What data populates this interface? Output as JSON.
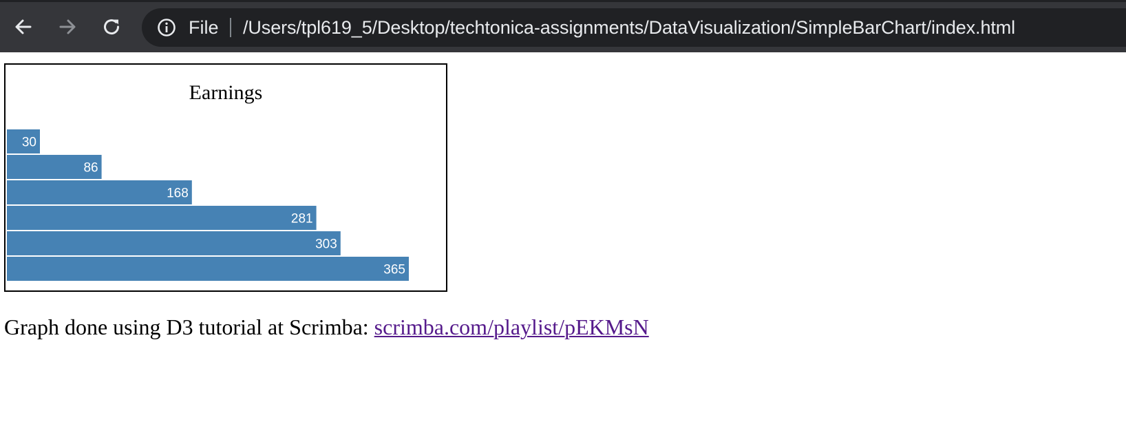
{
  "browser": {
    "scheme_label": "File",
    "url": "/Users/tpl619_5/Desktop/techtonica-assignments/DataVisualization/SimpleBarChart/index.html",
    "icons": {
      "back": "back-arrow-icon",
      "forward": "forward-arrow-icon",
      "reload": "reload-icon",
      "info": "info-icon"
    }
  },
  "chart_data": {
    "type": "bar",
    "orientation": "horizontal",
    "title": "Earnings",
    "values": [
      30,
      86,
      168,
      281,
      303,
      365
    ],
    "labels": [
      "30",
      "86",
      "168",
      "281",
      "303",
      "365"
    ],
    "bar_color": "#4682b4",
    "label_color": "#ffffff"
  },
  "caption": {
    "text": "Graph done using D3 tutorial at Scrimba: ",
    "link_text": "scrimba.com/playlist/pEKMsN"
  }
}
